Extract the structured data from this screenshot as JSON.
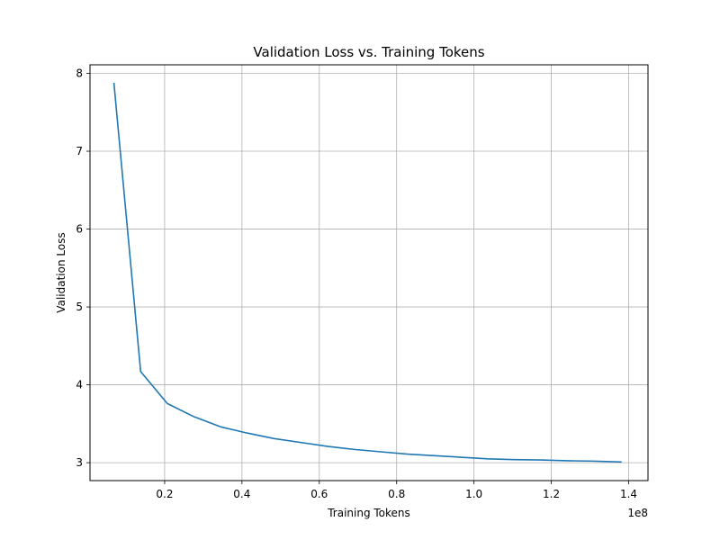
{
  "chart_data": {
    "type": "line",
    "title": "Validation Loss vs. Training Tokens",
    "xlabel": "Training Tokens",
    "ylabel": "Validation Loss",
    "x_offset_label": "1e8",
    "xlim": [
      700000,
      145000000
    ],
    "ylim": [
      2.77,
      8.11
    ],
    "xticks": [
      0.2,
      0.4,
      0.6,
      0.8,
      1.0,
      1.2,
      1.4
    ],
    "xtick_labels": [
      "0.2",
      "0.4",
      "0.6",
      "0.8",
      "1.0",
      "1.2",
      "1.4"
    ],
    "yticks": [
      3,
      4,
      5,
      6,
      7,
      8
    ],
    "ytick_labels": [
      "3",
      "4",
      "5",
      "6",
      "7",
      "8"
    ],
    "grid": true,
    "series": [
      {
        "color": "#1f77b4",
        "x": [
          6900000,
          13800000,
          20700000,
          27600000,
          34500000,
          41400000,
          48300000,
          55200000,
          62100000,
          69000000,
          75900000,
          82800000,
          89700000,
          96600000,
          103500000,
          110400000,
          117300000,
          124200000,
          131100000,
          138000000
        ],
        "y": [
          7.87,
          4.17,
          3.76,
          3.59,
          3.46,
          3.38,
          3.31,
          3.26,
          3.21,
          3.17,
          3.14,
          3.11,
          3.09,
          3.07,
          3.05,
          3.04,
          3.035,
          3.025,
          3.02,
          3.01
        ]
      }
    ]
  }
}
